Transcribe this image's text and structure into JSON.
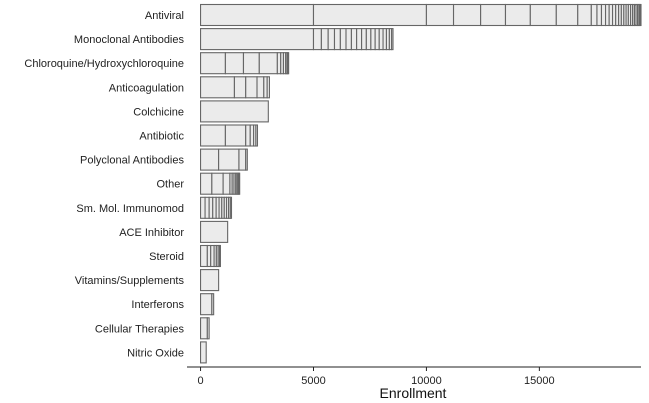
{
  "chart_data": {
    "type": "bar",
    "orientation": "horizontal",
    "stacked": true,
    "xlabel": "Enrollment",
    "ylabel": "",
    "xlim": [
      -600,
      19500
    ],
    "x_ticks": [
      0,
      5000,
      10000,
      15000
    ],
    "x_tick_labels": [
      "0",
      "5000",
      "10000",
      "15000"
    ],
    "grid": false,
    "colors": {
      "bar_fill": "#ebebeb",
      "bar_stroke": "#666666"
    },
    "categories": [
      "Antiviral",
      "Monoclonal Antibodies",
      "Chloroquine/Hydroxychloroquine",
      "Anticoagulation",
      "Colchicine",
      "Antibiotic",
      "Polyclonal Antibodies",
      "Other",
      "Sm. Mol. Immunomod",
      "ACE Inhibitor",
      "Steroid",
      "Vitamins/Supplements",
      "Interferons",
      "Cellular Therapies",
      "Nitric Oxide"
    ],
    "segments": [
      [
        5000,
        5000,
        1200,
        1200,
        1100,
        1100,
        1150,
        950,
        600,
        250,
        200,
        180,
        160,
        150,
        140,
        130,
        120,
        110,
        100,
        100,
        100,
        90,
        80,
        70,
        70,
        60,
        50,
        40
      ],
      [
        5000,
        350,
        300,
        280,
        260,
        250,
        240,
        230,
        220,
        210,
        200,
        190,
        180,
        170,
        150,
        130,
        100,
        60
      ],
      [
        1100,
        800,
        700,
        800,
        150,
        120,
        100,
        60,
        40,
        30
      ],
      [
        1500,
        500,
        500,
        300,
        150,
        100
      ],
      [
        3000
      ],
      [
        1100,
        900,
        200,
        150,
        100,
        70
      ],
      [
        800,
        900,
        300,
        70
      ],
      [
        500,
        500,
        300,
        100,
        80,
        80,
        60,
        50,
        40,
        20
      ],
      [
        200,
        180,
        160,
        150,
        130,
        120,
        110,
        100,
        90,
        80,
        50
      ],
      [
        1200
      ],
      [
        300,
        150,
        150,
        100,
        80,
        60,
        40
      ],
      [
        800
      ],
      [
        500,
        80
      ],
      [
        300,
        80
      ],
      [
        250
      ]
    ]
  }
}
